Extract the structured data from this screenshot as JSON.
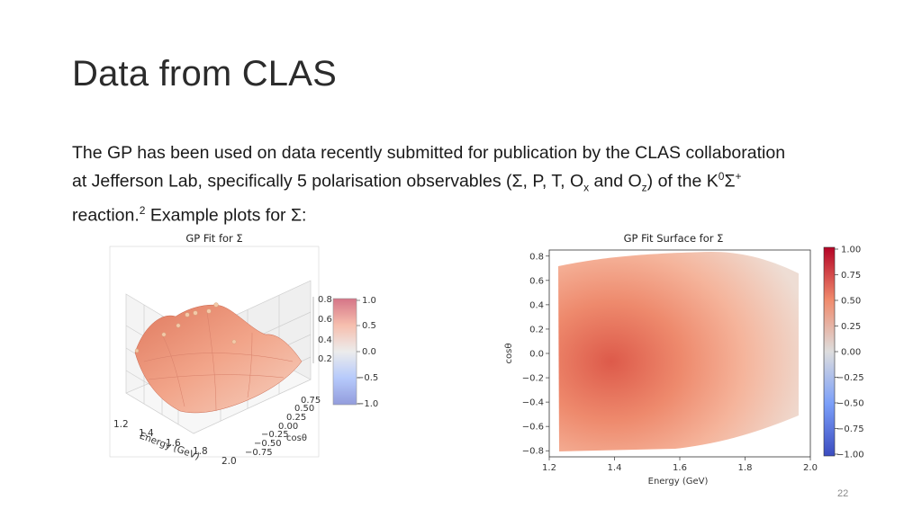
{
  "slide": {
    "title": "Data from CLAS",
    "body": {
      "line1": "The GP has been used on data recently submitted for publication by the CLAS collaboration",
      "line2_a": "at Jefferson Lab, specifically 5 polarisation observables (Σ, P, T, O",
      "line2_sub_x": "x",
      "line2_b": " and O",
      "line2_sub_z": "z",
      "line2_c": ") of the K",
      "line2_sup_0": "0",
      "line2_d": "Σ",
      "line2_sup_plus": "+",
      "line3_a": "reaction.",
      "line3_sup_ref": "2",
      "line3_b": " Example plots for Σ:"
    },
    "page_number": "22"
  },
  "chart_data": [
    {
      "type": "surface3d",
      "title": "GP Fit for Σ",
      "xlabel": "Energy (GeV)",
      "ylabel": "cosθ",
      "x_ticks": [
        "1.2",
        "1.4",
        "1.6",
        "1.8",
        "2.0"
      ],
      "y_ticks": [
        "0.75",
        "0.50",
        "0.25",
        "0.00",
        "−0.25",
        "−0.50",
        "−0.75"
      ],
      "z_ticks": [
        "0.8",
        "0.6",
        "0.4",
        "0.2"
      ],
      "colorbar_ticks": [
        "1.0",
        "0.5",
        "0.0",
        "−0.5",
        "−1.0"
      ],
      "colormap": "coolwarm",
      "grid": true
    },
    {
      "type": "heatmap",
      "title": "GP Fit Surface for Σ",
      "xlabel": "Energy (GeV)",
      "ylabel": "cosθ",
      "x_ticks": [
        "1.2",
        "1.4",
        "1.6",
        "1.8",
        "2.0"
      ],
      "y_ticks": [
        "0.8",
        "0.6",
        "0.4",
        "0.2",
        "0.0",
        "−0.2",
        "−0.4",
        "−0.6",
        "−0.8"
      ],
      "colorbar_ticks": [
        "1.00",
        "0.75",
        "0.50",
        "0.25",
        "0.00",
        "−0.25",
        "−0.50",
        "−0.75",
        "−1.00"
      ],
      "xlim": [
        1.2,
        2.0
      ],
      "ylim": [
        -0.85,
        0.85
      ],
      "colormap": "coolwarm"
    }
  ]
}
